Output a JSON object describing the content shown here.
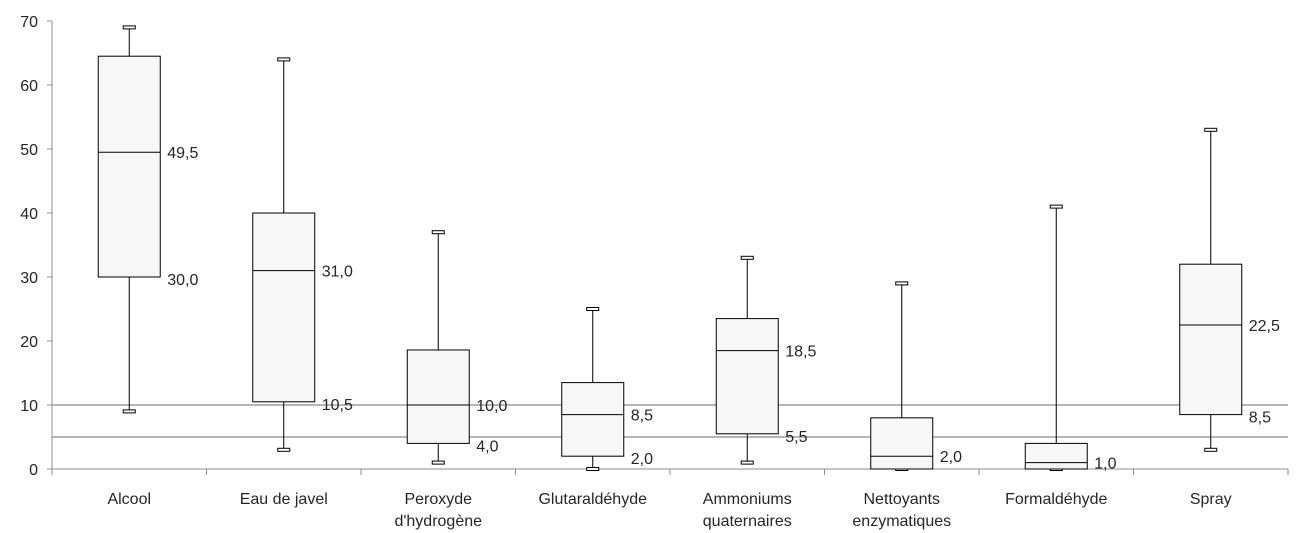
{
  "chart_data": {
    "type": "box",
    "title": "",
    "xlabel": "",
    "ylabel": "",
    "ylim": [
      0,
      70
    ],
    "yticks": [
      0,
      10,
      20,
      30,
      40,
      50,
      60,
      70
    ],
    "ytick_labels": [
      "0",
      "10",
      "20",
      "30",
      "40",
      "50",
      "60",
      "70"
    ],
    "grid": false,
    "reference_lines": [
      10,
      5
    ],
    "categories": [
      "Alcool",
      "Eau de javel",
      "Peroxyde d'hydrogène",
      "Glutaraldéhyde",
      "Ammoniums quaternaires",
      "Nettoyants enzymatiques",
      "Formaldéhyde",
      "Spray"
    ],
    "category_label_lines": [
      [
        "Alcool"
      ],
      [
        "Eau de javel"
      ],
      [
        "Peroxyde",
        "d'hydrogène"
      ],
      [
        "Glutaraldéhyde"
      ],
      [
        "Ammoniums",
        "quaternaires"
      ],
      [
        "Nettoyants",
        "enzymatiques"
      ],
      [
        "Formaldéhyde"
      ],
      [
        "Spray"
      ]
    ],
    "boxes": [
      {
        "min": 9,
        "q1": 30,
        "median": 49.5,
        "q3": 64.5,
        "max": 69,
        "median_label": "49,5",
        "q1_label": "30,0"
      },
      {
        "min": 3,
        "q1": 10.5,
        "median": 31,
        "q3": 40,
        "max": 64,
        "median_label": "31,0",
        "q1_label": "10,5"
      },
      {
        "min": 1,
        "q1": 4,
        "median": 10,
        "q3": 18.6,
        "max": 37,
        "median_label": "10,0",
        "q1_label": "4,0"
      },
      {
        "min": 0,
        "q1": 2,
        "median": 8.5,
        "q3": 13.5,
        "max": 25,
        "median_label": "8,5",
        "q1_label": "2,0"
      },
      {
        "min": 1,
        "q1": 5.5,
        "median": 18.5,
        "q3": 23.5,
        "max": 33,
        "median_label": "18,5",
        "q1_label": "5,5"
      },
      {
        "min": 0,
        "q1": 0,
        "median": 2,
        "q3": 8,
        "max": 29,
        "median_label": "2,0",
        "q1_label": ""
      },
      {
        "min": 0,
        "q1": 0,
        "median": 1,
        "q3": 4,
        "max": 41,
        "median_label": "1,0",
        "q1_label": ""
      },
      {
        "min": 3,
        "q1": 8.5,
        "median": 22.5,
        "q3": 32,
        "max": 53,
        "median_label": "22,5",
        "q1_label": "8,5"
      }
    ]
  }
}
